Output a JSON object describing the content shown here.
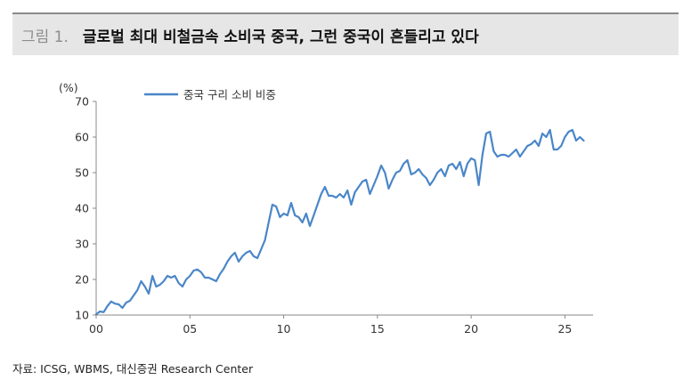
{
  "figure": {
    "label": "그림 1.",
    "title": "글로벌 최대 비철금속 소비국 중국, 그런 중국이 흔들리고 있다"
  },
  "source": "자료: ICSG, WBMS, 대신증권 Research Center",
  "colors": {
    "line": "#4a86c8",
    "axis": "#888888"
  },
  "chart_data": {
    "type": "line",
    "title": "",
    "xlabel": "",
    "ylabel": "(%)",
    "xlim": [
      2000,
      2026.5
    ],
    "ylim": [
      10,
      70
    ],
    "y_ticks": [
      10,
      20,
      30,
      40,
      50,
      60,
      70
    ],
    "x_ticks": [
      {
        "value": 2000,
        "label": "00"
      },
      {
        "value": 2005,
        "label": "05"
      },
      {
        "value": 2010,
        "label": "10"
      },
      {
        "value": 2015,
        "label": "15"
      },
      {
        "value": 2020,
        "label": "20"
      },
      {
        "value": 2025,
        "label": "25"
      }
    ],
    "grid": false,
    "legend_position": "top-left",
    "series": [
      {
        "name": "중국 구리 소비 비중",
        "x": [
          2000.0,
          2000.2,
          2000.4,
          2000.6,
          2000.8,
          2001.0,
          2001.2,
          2001.4,
          2001.6,
          2001.8,
          2002.0,
          2002.2,
          2002.4,
          2002.6,
          2002.8,
          2003.0,
          2003.2,
          2003.4,
          2003.6,
          2003.8,
          2004.0,
          2004.2,
          2004.4,
          2004.6,
          2004.8,
          2005.0,
          2005.2,
          2005.4,
          2005.6,
          2005.8,
          2006.0,
          2006.2,
          2006.4,
          2006.6,
          2006.8,
          2007.0,
          2007.2,
          2007.4,
          2007.6,
          2007.8,
          2008.0,
          2008.2,
          2008.4,
          2008.6,
          2008.8,
          2009.0,
          2009.2,
          2009.4,
          2009.6,
          2009.8,
          2010.0,
          2010.2,
          2010.4,
          2010.6,
          2010.8,
          2011.0,
          2011.2,
          2011.4,
          2011.6,
          2011.8,
          2012.0,
          2012.2,
          2012.4,
          2012.6,
          2012.8,
          2013.0,
          2013.2,
          2013.4,
          2013.6,
          2013.8,
          2014.0,
          2014.2,
          2014.4,
          2014.6,
          2014.8,
          2015.0,
          2015.2,
          2015.4,
          2015.6,
          2015.8,
          2016.0,
          2016.2,
          2016.4,
          2016.6,
          2016.8,
          2017.0,
          2017.2,
          2017.4,
          2017.6,
          2017.8,
          2018.0,
          2018.2,
          2018.4,
          2018.6,
          2018.8,
          2019.0,
          2019.2,
          2019.4,
          2019.6,
          2019.8,
          2020.0,
          2020.2,
          2020.4,
          2020.6,
          2020.8,
          2021.0,
          2021.2,
          2021.4,
          2021.6,
          2021.8,
          2022.0,
          2022.2,
          2022.4,
          2022.6,
          2022.8,
          2023.0,
          2023.2,
          2023.4,
          2023.6,
          2023.8,
          2024.0,
          2024.2,
          2024.4,
          2024.6,
          2024.8,
          2025.0,
          2025.2,
          2025.4,
          2025.6,
          2025.8,
          2026.0
        ],
        "values": [
          10.2,
          11.0,
          10.8,
          12.5,
          13.8,
          13.2,
          13.0,
          12.0,
          13.5,
          14.0,
          15.5,
          17.0,
          19.5,
          18.0,
          16.0,
          21.0,
          18.0,
          18.5,
          19.5,
          21.0,
          20.5,
          21.0,
          19.0,
          18.0,
          20.0,
          21.0,
          22.5,
          22.8,
          22.0,
          20.5,
          20.5,
          20.0,
          19.5,
          21.5,
          23.0,
          25.0,
          26.5,
          27.5,
          25.0,
          26.5,
          27.5,
          28.0,
          26.5,
          26.0,
          28.5,
          31.0,
          36.0,
          41.0,
          40.5,
          37.5,
          38.5,
          38.0,
          41.5,
          38.0,
          37.5,
          36.0,
          38.5,
          35.0,
          38.0,
          41.0,
          44.0,
          46.0,
          43.5,
          43.5,
          43.0,
          44.0,
          43.0,
          45.0,
          41.0,
          44.5,
          46.0,
          47.5,
          48.0,
          44.0,
          46.5,
          49.0,
          52.0,
          50.0,
          45.5,
          48.0,
          50.0,
          50.5,
          52.5,
          53.5,
          49.5,
          50.0,
          51.0,
          49.5,
          48.5,
          46.5,
          48.0,
          50.0,
          51.0,
          49.0,
          52.0,
          52.5,
          51.0,
          53.0,
          49.0,
          52.5,
          54.0,
          53.5,
          46.5,
          55.0,
          61.0,
          61.5,
          56.0,
          54.5,
          55.0,
          55.0,
          54.5,
          55.5,
          56.5,
          54.5,
          56.0,
          57.5,
          58.0,
          59.0,
          57.5,
          61.0,
          60.0,
          62.0,
          56.5,
          56.5,
          57.5,
          60.0,
          61.5,
          62.0,
          59.0,
          60.0,
          59.0
        ]
      }
    ]
  }
}
